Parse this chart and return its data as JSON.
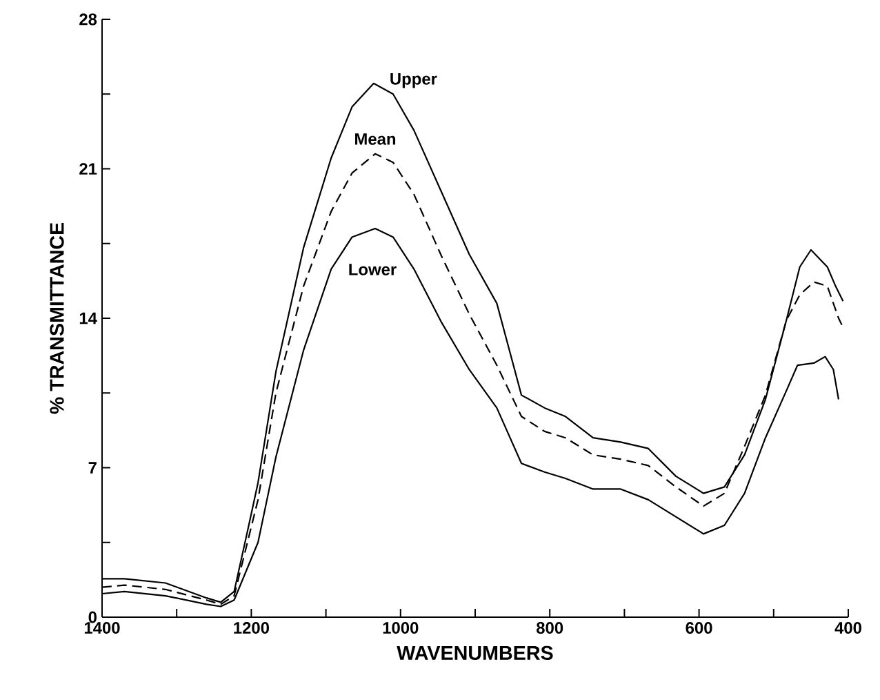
{
  "chart_data": {
    "type": "line",
    "xlabel": "WAVENUMBERS",
    "ylabel": "% TRANSMITTANCE",
    "xlim": [
      1400,
      400
    ],
    "ylim": [
      0,
      28
    ],
    "xticks": [
      1400,
      {
        "value": 1300,
        "label": null
      },
      1200,
      {
        "value": 1100,
        "label": null
      },
      1000,
      {
        "value": 900,
        "label": null
      },
      800,
      {
        "value": 700,
        "label": null
      },
      600,
      {
        "value": 500,
        "label": null
      },
      400
    ],
    "yticks": [
      0,
      {
        "value": 3.5,
        "label": null
      },
      7,
      {
        "value": 10.5,
        "label": null
      },
      14,
      {
        "value": 17.5,
        "label": null
      },
      21,
      {
        "value": 24.5,
        "label": null
      },
      28
    ],
    "grid": false,
    "legend": false,
    "marker": "none",
    "series": [
      {
        "name": "Upper",
        "color": "#000000",
        "line_style": "solid",
        "x": [
          1400,
          1370,
          1315,
          1260,
          1241,
          1223,
          1204,
          1191,
          1167,
          1130,
          1093,
          1065,
          1036,
          1010,
          982,
          945,
          908,
          871,
          838,
          807,
          779,
          742,
          705,
          668,
          631,
          594,
          566,
          539,
          511,
          483,
          465,
          450,
          428,
          417,
          407
        ],
        "values": [
          1.8,
          1.8,
          1.6,
          0.9,
          0.7,
          1.2,
          4.2,
          6.3,
          11.5,
          17.3,
          21.5,
          23.9,
          25.0,
          24.5,
          22.8,
          19.9,
          17.0,
          14.7,
          10.4,
          9.8,
          9.4,
          8.4,
          8.2,
          7.9,
          6.6,
          5.8,
          6.1,
          7.6,
          10.2,
          13.9,
          16.4,
          17.2,
          16.4,
          15.5,
          14.8
        ]
      },
      {
        "name": "Mean",
        "color": "#000000",
        "line_style": "dashed",
        "x": [
          1400,
          1370,
          1315,
          1260,
          1241,
          1223,
          1191,
          1167,
          1130,
          1093,
          1065,
          1034,
          1010,
          982,
          945,
          908,
          871,
          838,
          807,
          779,
          742,
          705,
          668,
          631,
          594,
          566,
          539,
          511,
          483,
          465,
          446,
          428,
          420,
          413,
          406
        ],
        "values": [
          1.4,
          1.5,
          1.3,
          0.8,
          0.6,
          1.0,
          5.5,
          10.5,
          15.5,
          19.0,
          20.8,
          21.7,
          21.3,
          19.8,
          16.9,
          14.2,
          11.8,
          9.4,
          8.7,
          8.4,
          7.6,
          7.4,
          7.1,
          6.1,
          5.2,
          5.8,
          8.0,
          10.4,
          13.9,
          15.1,
          15.7,
          15.5,
          14.7,
          14.0,
          13.5
        ]
      },
      {
        "name": "Lower",
        "color": "#000000",
        "line_style": "solid",
        "x": [
          1400,
          1370,
          1315,
          1260,
          1241,
          1223,
          1191,
          1167,
          1130,
          1093,
          1065,
          1034,
          1010,
          982,
          945,
          908,
          871,
          838,
          807,
          779,
          742,
          705,
          668,
          631,
          594,
          566,
          539,
          511,
          483,
          468,
          446,
          431,
          420,
          413
        ],
        "values": [
          1.1,
          1.2,
          1.0,
          0.6,
          0.5,
          0.8,
          3.5,
          7.5,
          12.5,
          16.3,
          17.8,
          18.2,
          17.8,
          16.3,
          13.8,
          11.6,
          9.8,
          7.2,
          6.8,
          6.5,
          6.0,
          6.0,
          5.5,
          4.7,
          3.9,
          4.3,
          5.8,
          8.4,
          10.6,
          11.8,
          11.9,
          12.2,
          11.6,
          10.2
        ]
      }
    ]
  }
}
